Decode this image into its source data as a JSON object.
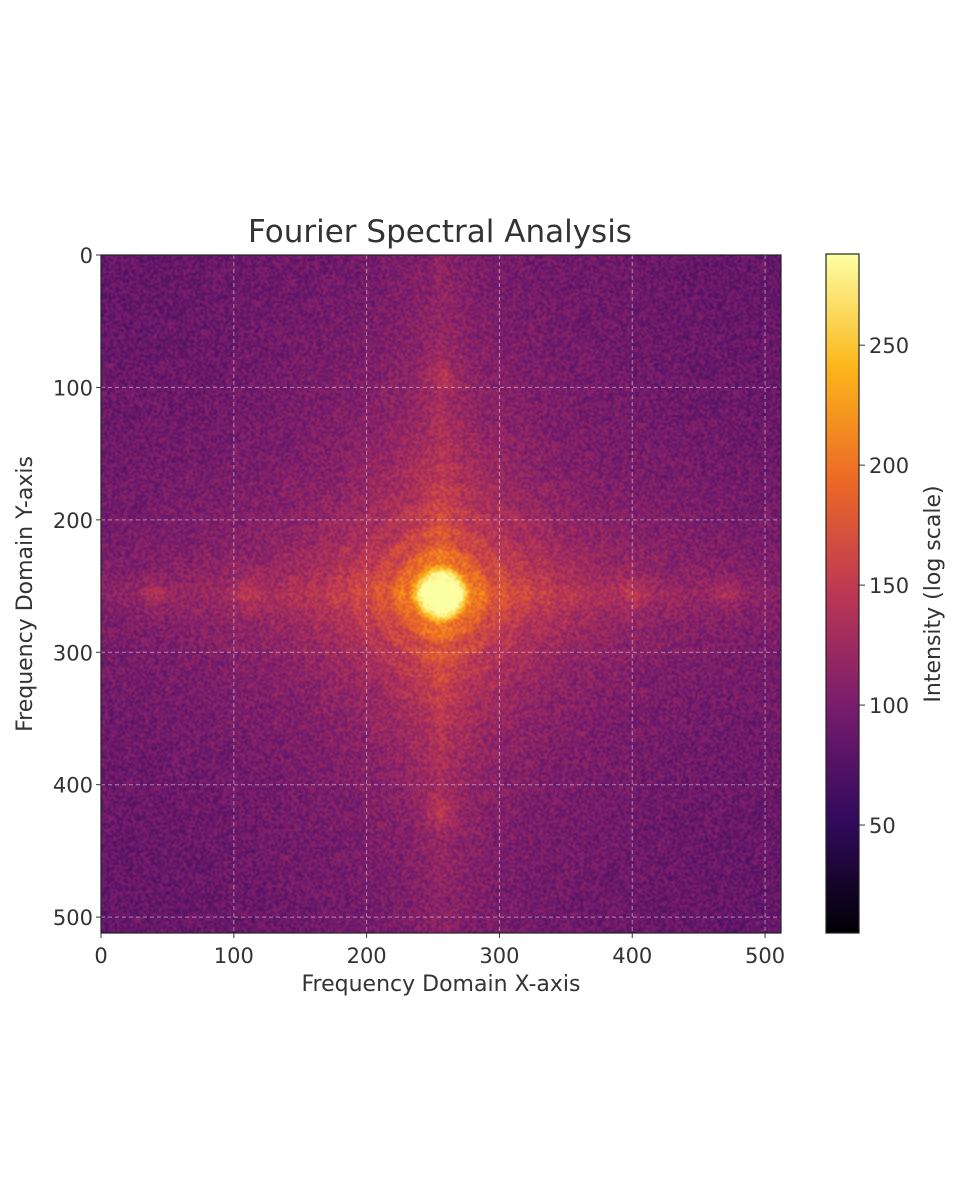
{
  "chart_data": {
    "type": "heatmap",
    "title": "Fourier Spectral Analysis",
    "xlabel": "Frequency Domain X-axis",
    "ylabel": "Frequency Domain Y-axis",
    "xlim": [
      0,
      512
    ],
    "ylim": [
      512,
      0
    ],
    "y_axis_inverted": true,
    "x_ticks": [
      0,
      100,
      200,
      300,
      400,
      500
    ],
    "y_ticks": [
      0,
      100,
      200,
      300,
      400,
      500
    ],
    "grid": true,
    "colormap": "inferno",
    "colormap_stops": [
      "#000004",
      "#320a5e",
      "#781c6d",
      "#bc3754",
      "#ed6925",
      "#fbb61a",
      "#fcffa4"
    ],
    "colorbar": {
      "label": "Intensity (log scale)",
      "range": [
        5,
        288
      ],
      "ticks": [
        50,
        100,
        150,
        200,
        250
      ],
      "placement": "right"
    },
    "features": {
      "center": [
        256,
        256
      ],
      "peak_intensity": 288,
      "background_intensity": 95,
      "ring_radii": [
        18,
        32,
        48,
        64
      ],
      "axis_side_peaks": [
        {
          "x": 256,
          "y": 92
        },
        {
          "x": 256,
          "y": 420
        },
        {
          "x": 110,
          "y": 256
        },
        {
          "x": 402,
          "y": 256
        },
        {
          "x": 40,
          "y": 256
        },
        {
          "x": 470,
          "y": 256
        }
      ]
    }
  }
}
